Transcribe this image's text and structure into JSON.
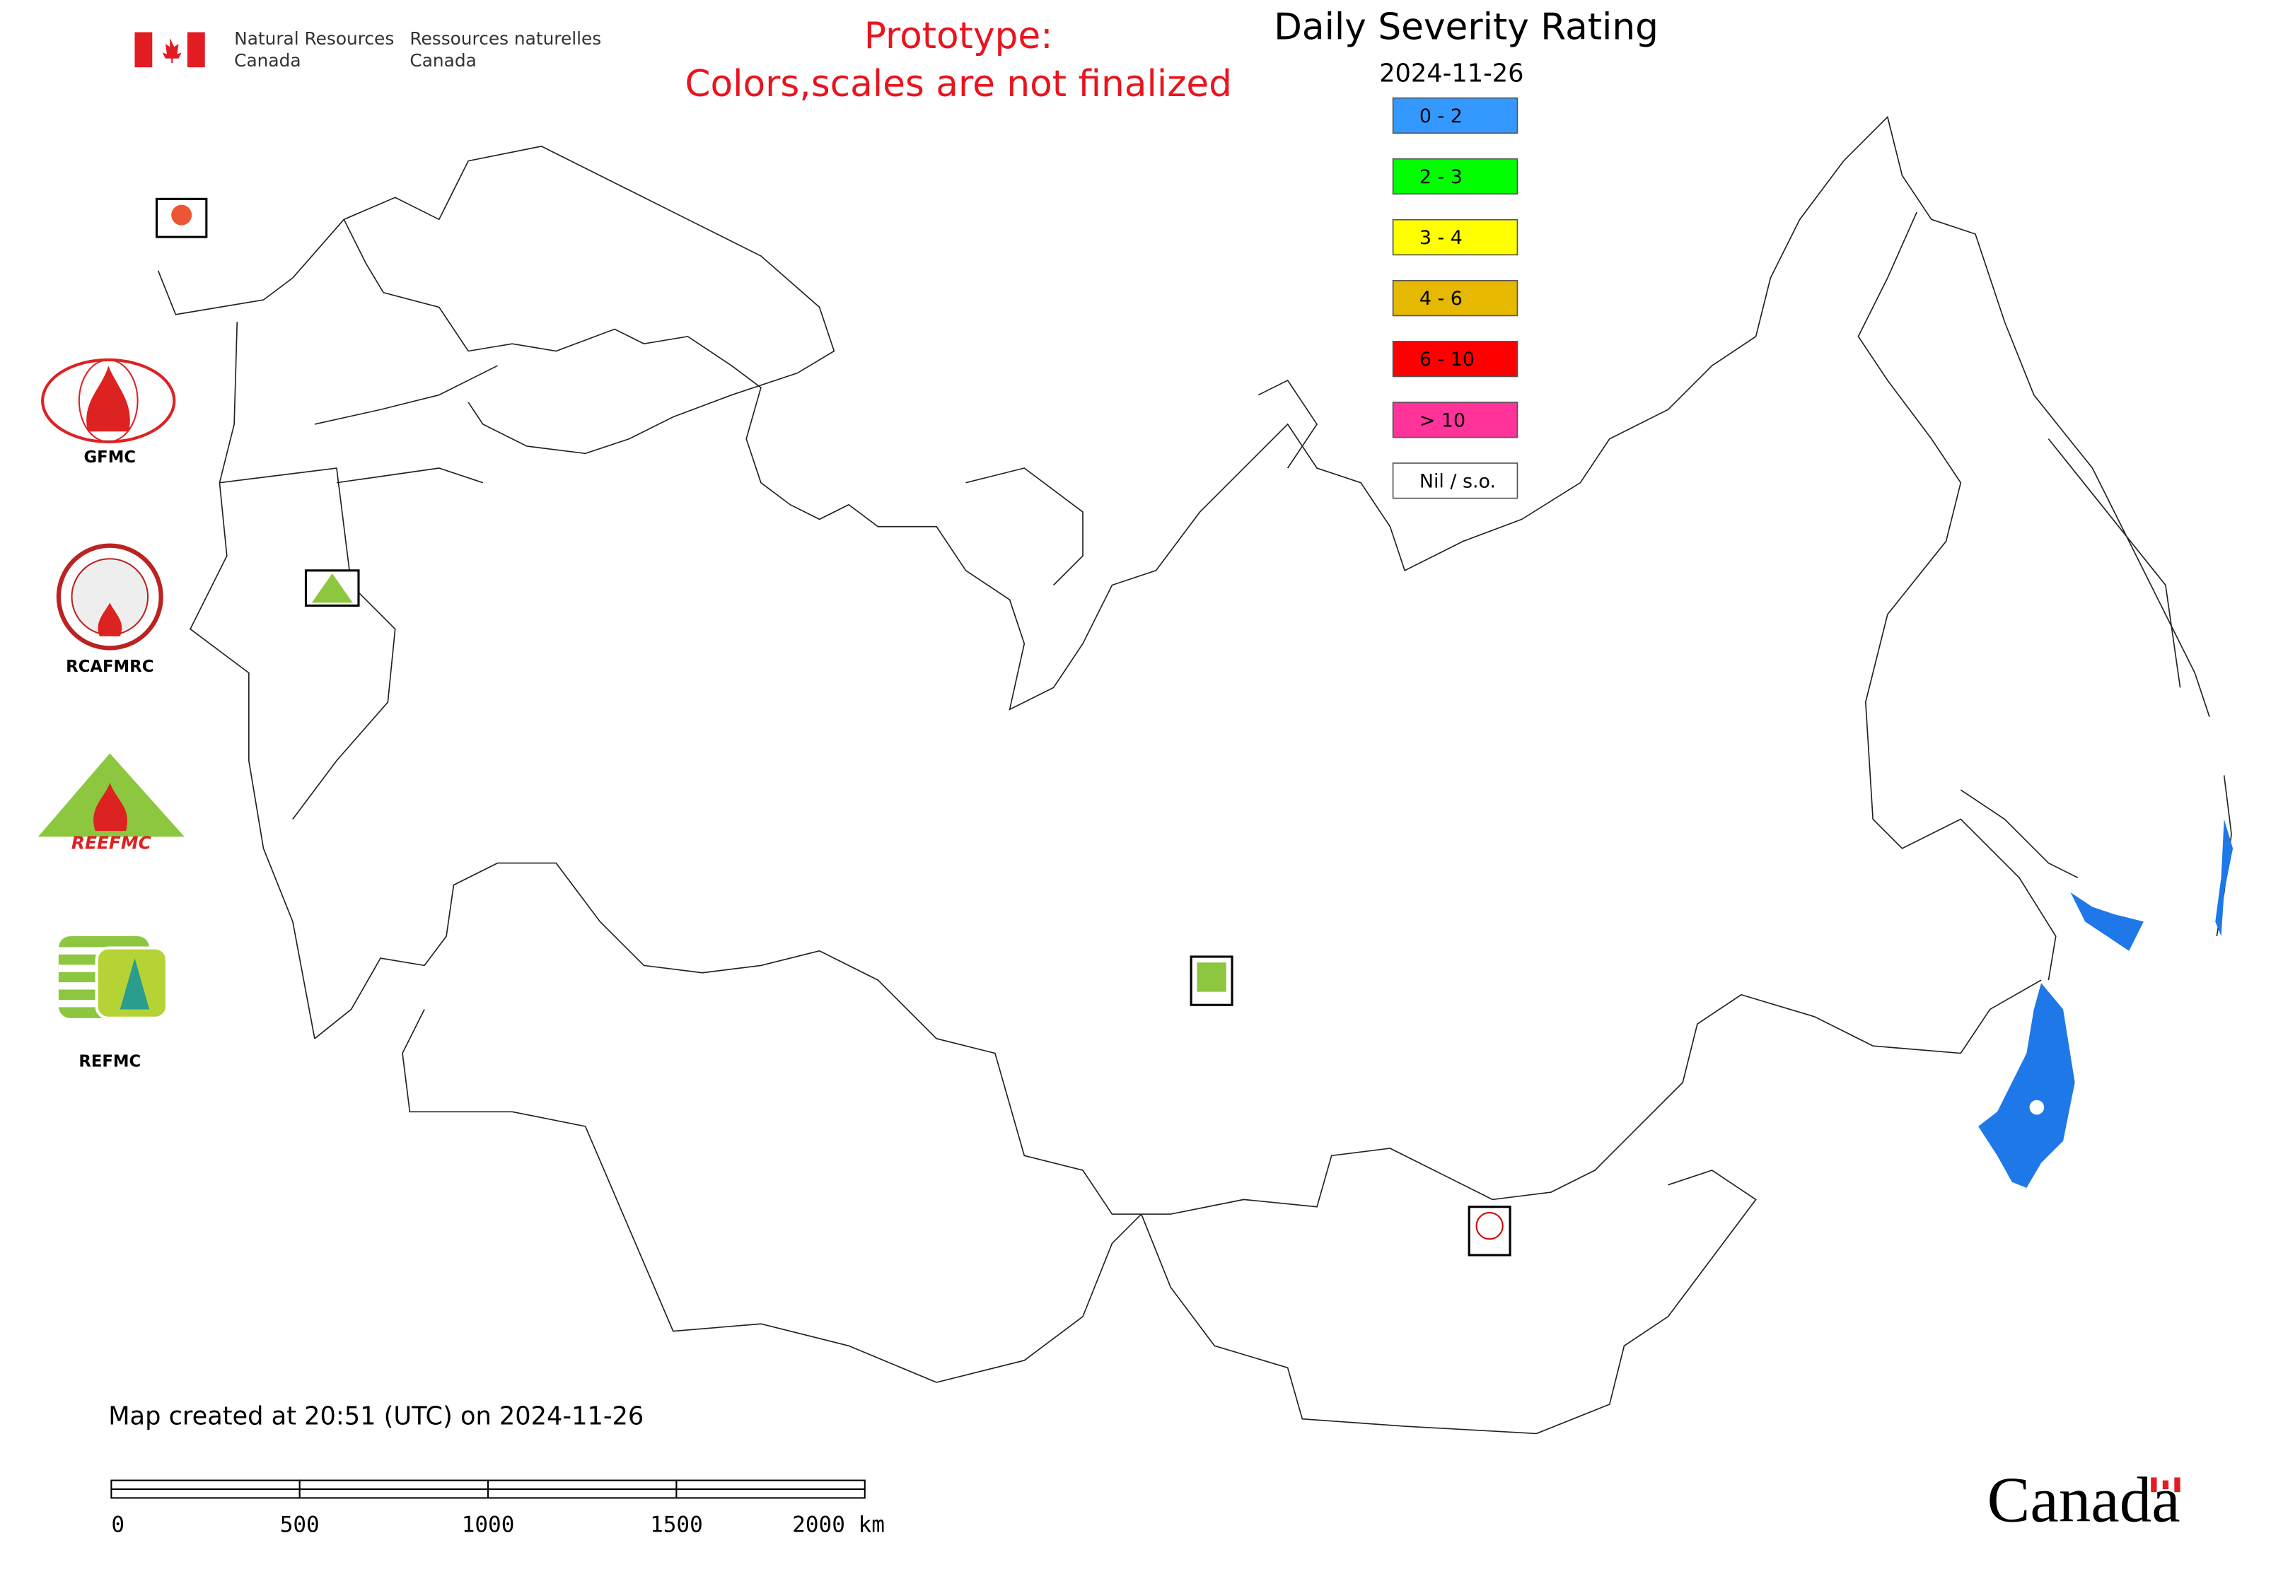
{
  "header": {
    "dept_en": [
      "Natural Resources",
      "Canada"
    ],
    "dept_fr": [
      "Ressources naturelles",
      "Canada"
    ]
  },
  "notice": [
    "Prototype:",
    "Colors,scales are not finalized"
  ],
  "title": "Daily Severity Rating",
  "date": "2024-11-26",
  "legend": {
    "items": [
      {
        "label": "0 - 2",
        "color": "#3399ff"
      },
      {
        "label": "2 - 3",
        "color": "#00ff00"
      },
      {
        "label": "3 - 4",
        "color": "#ffff00"
      },
      {
        "label": "4 - 6",
        "color": "#e6b800"
      },
      {
        "label": "6 - 10",
        "color": "#ff0000"
      },
      {
        "label": "> 10",
        "color": "#ff3399"
      },
      {
        "label": "Nil / s.o.",
        "color": "#ffffff"
      }
    ]
  },
  "logos": [
    "GFMC",
    "RCAFMRC",
    "REEFMC",
    "REFMC"
  ],
  "footer": "Map created at 20:51 (UTC) on 2024-11-26",
  "scale_bar": {
    "labels": [
      "0",
      "500",
      "1000",
      "1500",
      "2000 km"
    ]
  },
  "wordmark": "Canada"
}
